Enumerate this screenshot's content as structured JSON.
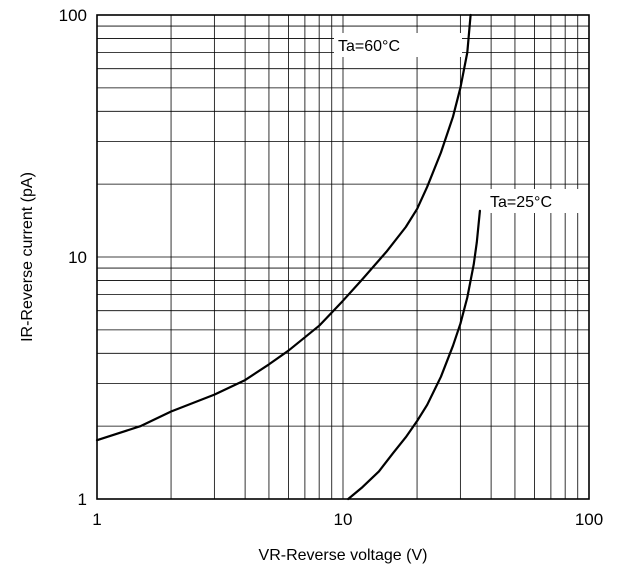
{
  "chart_data": {
    "type": "line",
    "xlabel": "VR-Reverse voltage (V)",
    "ylabel": "IR-Reverse current (pA)",
    "xscale": "log",
    "yscale": "log",
    "xlim": [
      1,
      100
    ],
    "ylim": [
      1,
      100
    ],
    "x_ticks": [
      "1",
      "10",
      "100"
    ],
    "y_ticks": [
      "1",
      "10",
      "100"
    ],
    "grid": true,
    "series": [
      {
        "name": "Ta=60°C",
        "x": [
          1,
          1.5,
          2,
          3,
          4,
          5,
          6,
          8,
          10,
          12,
          15,
          18,
          20,
          22,
          25,
          28,
          30,
          32,
          33
        ],
        "y": [
          1.75,
          2.0,
          2.3,
          2.7,
          3.1,
          3.6,
          4.1,
          5.2,
          6.6,
          8.1,
          10.5,
          13.3,
          15.8,
          19.5,
          27,
          38,
          50,
          70,
          100
        ]
      },
      {
        "name": "Ta=25°C",
        "x": [
          10.5,
          12,
          14,
          16,
          18,
          20,
          22,
          25,
          28,
          30,
          32,
          34,
          35,
          36
        ],
        "y": [
          1.0,
          1.12,
          1.3,
          1.55,
          1.8,
          2.1,
          2.45,
          3.2,
          4.3,
          5.3,
          6.8,
          9.3,
          11.5,
          15.5
        ]
      }
    ]
  }
}
